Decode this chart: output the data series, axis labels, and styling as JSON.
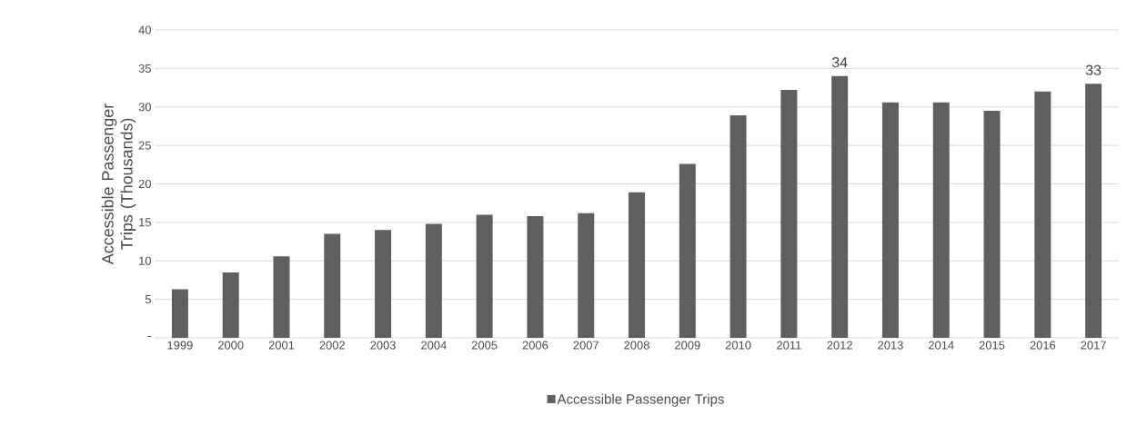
{
  "chart_data": {
    "type": "bar",
    "ylabel": "Accessible Passenger Trips (Thousands)",
    "categories": [
      "1999",
      "2000",
      "2001",
      "2002",
      "2003",
      "2004",
      "2005",
      "2006",
      "2007",
      "2008",
      "2009",
      "2010",
      "2011",
      "2012",
      "2013",
      "2014",
      "2015",
      "2016",
      "2017"
    ],
    "series": [
      {
        "name": "Accessible Passenger Trips",
        "color": "#5f5f5f",
        "values": [
          6.3,
          8.5,
          10.6,
          13.5,
          14.0,
          14.8,
          16.0,
          15.8,
          16.2,
          18.9,
          22.6,
          28.9,
          32.2,
          34,
          30.6,
          30.6,
          29.5,
          32.0,
          33
        ],
        "value_labels": [
          null,
          null,
          null,
          null,
          null,
          null,
          null,
          null,
          null,
          null,
          null,
          null,
          null,
          "34",
          null,
          null,
          null,
          null,
          "33"
        ]
      }
    ],
    "ylim": [
      0,
      40
    ],
    "yticks": [
      {
        "value": 0,
        "label": "-"
      },
      5,
      10,
      15,
      20,
      25,
      30,
      35,
      40
    ],
    "grid": "y",
    "legend": "bottom"
  }
}
